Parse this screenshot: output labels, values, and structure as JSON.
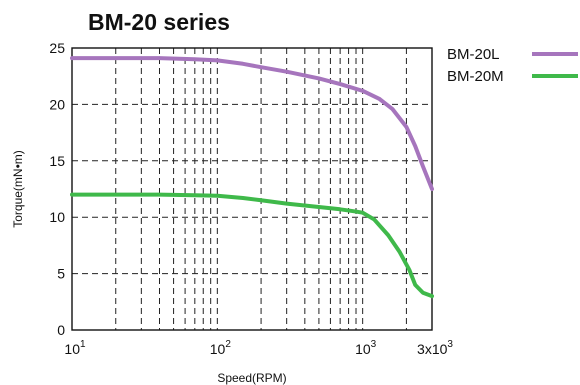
{
  "chart_data": {
    "type": "line",
    "title": "BM-20  series",
    "xlabel": "Speed(RPM)",
    "ylabel": "Torque(mN•m)",
    "xscale": "log",
    "xlim": [
      10,
      3000
    ],
    "ylim": [
      0,
      25
    ],
    "y_ticks": [
      "0",
      "5",
      "10",
      "15",
      "20",
      "25"
    ],
    "x_ticks": [
      {
        "value": 10,
        "base": "10",
        "exp": "1"
      },
      {
        "value": 100,
        "base": "10",
        "exp": "2"
      },
      {
        "value": 1000,
        "base": "10",
        "exp": "3"
      },
      {
        "value": 3000,
        "base": "3x10",
        "exp": "3"
      }
    ],
    "grid": true,
    "legend_position": "right",
    "series": [
      {
        "name": "BM-20L",
        "color": "#a675bd",
        "points": [
          [
            10,
            24.1
          ],
          [
            20,
            24.1
          ],
          [
            40,
            24.1
          ],
          [
            70,
            24.0
          ],
          [
            100,
            23.9
          ],
          [
            150,
            23.6
          ],
          [
            200,
            23.3
          ],
          [
            300,
            22.9
          ],
          [
            500,
            22.3
          ],
          [
            700,
            21.8
          ],
          [
            1000,
            21.2
          ],
          [
            1300,
            20.5
          ],
          [
            1600,
            19.6
          ],
          [
            2000,
            18.0
          ],
          [
            2300,
            16.3
          ],
          [
            2600,
            14.5
          ],
          [
            3000,
            12.5
          ]
        ]
      },
      {
        "name": "BM-20M",
        "color": "#3fb94a",
        "points": [
          [
            10,
            12.0
          ],
          [
            20,
            12.0
          ],
          [
            40,
            12.0
          ],
          [
            70,
            11.95
          ],
          [
            100,
            11.9
          ],
          [
            150,
            11.7
          ],
          [
            200,
            11.5
          ],
          [
            300,
            11.2
          ],
          [
            500,
            10.9
          ],
          [
            700,
            10.7
          ],
          [
            900,
            10.5
          ],
          [
            1000,
            10.4
          ],
          [
            1200,
            9.8
          ],
          [
            1500,
            8.4
          ],
          [
            1800,
            6.9
          ],
          [
            2100,
            5.3
          ],
          [
            2300,
            4.0
          ],
          [
            2600,
            3.3
          ],
          [
            3000,
            3.0
          ]
        ]
      }
    ]
  }
}
